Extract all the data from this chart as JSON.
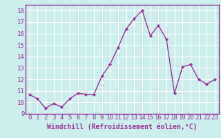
{
  "x": [
    0,
    1,
    2,
    3,
    4,
    5,
    6,
    7,
    8,
    9,
    10,
    11,
    12,
    13,
    14,
    15,
    16,
    17,
    18,
    19,
    20,
    21,
    22,
    23
  ],
  "y": [
    10.7,
    10.3,
    9.5,
    9.9,
    9.6,
    10.3,
    10.8,
    10.7,
    10.7,
    12.3,
    13.3,
    14.8,
    16.4,
    17.3,
    18.0,
    15.8,
    16.7,
    15.5,
    10.8,
    13.1,
    13.3,
    12.0,
    11.6,
    12.0
  ],
  "line_color": "#993399",
  "marker": "D",
  "marker_size": 2.0,
  "line_width": 1.0,
  "xlabel": "Windchill (Refroidissement éolien,°C)",
  "xlabel_fontsize": 7,
  "xlim": [
    -0.5,
    23.5
  ],
  "ylim": [
    9,
    18.5
  ],
  "yticks": [
    9,
    10,
    11,
    12,
    13,
    14,
    15,
    16,
    17,
    18
  ],
  "xticks": [
    0,
    1,
    2,
    3,
    4,
    5,
    6,
    7,
    8,
    9,
    10,
    11,
    12,
    13,
    14,
    15,
    16,
    17,
    18,
    19,
    20,
    21,
    22,
    23
  ],
  "tick_fontsize": 6.5,
  "background_color": "#cceeed",
  "grid_color": "#aacccc",
  "spine_color": "#993399"
}
